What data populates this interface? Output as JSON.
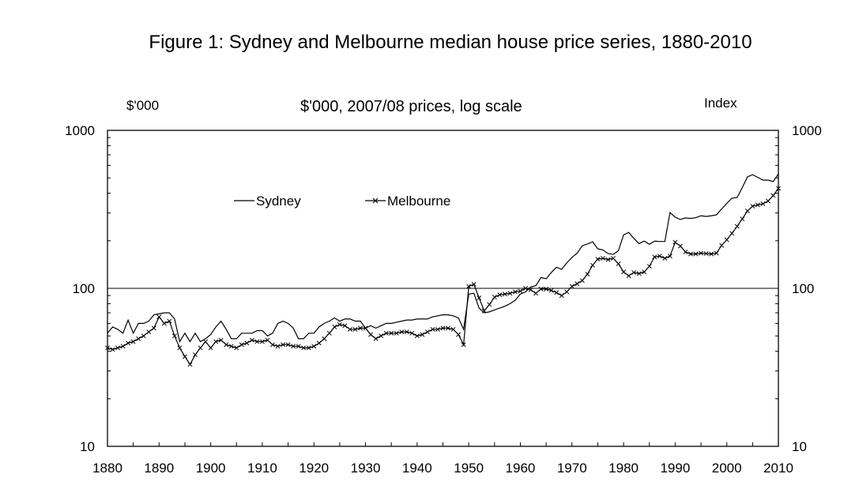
{
  "chart_data": {
    "type": "line",
    "title": "Figure 1: Sydney and Melbourne median house price series, 1880-2010",
    "subtitle": "$'000, 2007/08 prices, log scale",
    "ylabel_left": "$'000",
    "ylabel_right": "Index",
    "y_scale": "log",
    "ylim": [
      10,
      1000
    ],
    "xlim": [
      1880,
      2010
    ],
    "x_ticks": [
      1880,
      1890,
      1900,
      1910,
      1920,
      1930,
      1940,
      1950,
      1960,
      1970,
      1980,
      1990,
      2000,
      2010
    ],
    "y_ticks_left": [
      10,
      100,
      1000
    ],
    "y_ticks_right": [
      10,
      100,
      1000
    ],
    "y_tick_labels": [
      "10",
      "100",
      "1000"
    ],
    "reference_line": 100,
    "legend_placement": "top-left",
    "x": [
      1880,
      1881,
      1882,
      1883,
      1884,
      1885,
      1886,
      1887,
      1888,
      1889,
      1890,
      1891,
      1892,
      1893,
      1894,
      1895,
      1896,
      1897,
      1898,
      1899,
      1900,
      1901,
      1902,
      1903,
      1904,
      1905,
      1906,
      1907,
      1908,
      1909,
      1910,
      1911,
      1912,
      1913,
      1914,
      1915,
      1916,
      1917,
      1918,
      1919,
      1920,
      1921,
      1922,
      1923,
      1924,
      1925,
      1926,
      1927,
      1928,
      1929,
      1930,
      1931,
      1932,
      1933,
      1934,
      1935,
      1936,
      1937,
      1938,
      1939,
      1940,
      1941,
      1942,
      1943,
      1944,
      1945,
      1946,
      1947,
      1948,
      1949,
      1950,
      1951,
      1952,
      1953,
      1954,
      1955,
      1956,
      1957,
      1958,
      1959,
      1960,
      1961,
      1962,
      1963,
      1964,
      1965,
      1966,
      1967,
      1968,
      1969,
      1970,
      1971,
      1972,
      1973,
      1974,
      1975,
      1976,
      1977,
      1978,
      1979,
      1980,
      1981,
      1982,
      1983,
      1984,
      1985,
      1986,
      1987,
      1988,
      1989,
      1990,
      1991,
      1992,
      1993,
      1994,
      1995,
      1996,
      1997,
      1998,
      1999,
      2000,
      2001,
      2002,
      2003,
      2004,
      2005,
      2006,
      2007,
      2008,
      2009,
      2010
    ],
    "series": [
      {
        "name": "Sydney",
        "color": "#000000",
        "marker": "none",
        "values": [
          52,
          57,
          55,
          52,
          63,
          52,
          60,
          60,
          62,
          68,
          69,
          70,
          70,
          64,
          46,
          52,
          46,
          52,
          46,
          48,
          51,
          57,
          62,
          55,
          48,
          48,
          52,
          52,
          52,
          54,
          54,
          50,
          52,
          60,
          62,
          60,
          56,
          48,
          48,
          52,
          52,
          57,
          60,
          62,
          65,
          62,
          64,
          64,
          62,
          62,
          56,
          58,
          56,
          58,
          60,
          60,
          61,
          62,
          63,
          63,
          64,
          64,
          64,
          66,
          67,
          68,
          68,
          67,
          65,
          55,
          92,
          93,
          75,
          70,
          71,
          73,
          75,
          77,
          80,
          84,
          92,
          95,
          102,
          104,
          117,
          115,
          126,
          136,
          132,
          145,
          157,
          167,
          186,
          191,
          197,
          178,
          175,
          166,
          164,
          173,
          218,
          226,
          207,
          192,
          199,
          190,
          199,
          198,
          198,
          302,
          282,
          273,
          279,
          277,
          280,
          288,
          285,
          288,
          292,
          318,
          345,
          372,
          376,
          434,
          508,
          524,
          504,
          484,
          484,
          474,
          530
        ]
      },
      {
        "name": "Melbourne",
        "color": "#000000",
        "marker": "x",
        "values": [
          42,
          41,
          42,
          43,
          45,
          46,
          48,
          50,
          53,
          56,
          66,
          60,
          62,
          50,
          42,
          37,
          33,
          38,
          42,
          46,
          42,
          46,
          47,
          44,
          43,
          42,
          44,
          45,
          47,
          46,
          46,
          47,
          44,
          43,
          44,
          44,
          43,
          43,
          42,
          42,
          43,
          45,
          48,
          52,
          57,
          59,
          58,
          55,
          55,
          56,
          56,
          51,
          48,
          50,
          52,
          52,
          52,
          53,
          53,
          52,
          50,
          51,
          53,
          55,
          55,
          56,
          56,
          55,
          51,
          44,
          103,
          106,
          87,
          72,
          79,
          88,
          91,
          92,
          93,
          95,
          96,
          100,
          98,
          93,
          99,
          99,
          97,
          94,
          90,
          95,
          103,
          107,
          112,
          123,
          140,
          153,
          155,
          152,
          155,
          143,
          127,
          120,
          126,
          124,
          127,
          138,
          158,
          160,
          155,
          160,
          196,
          185,
          170,
          165,
          165,
          167,
          166,
          165,
          167,
          187,
          203,
          223,
          247,
          275,
          309,
          331,
          337,
          343,
          357,
          387,
          429
        ]
      }
    ]
  },
  "legend": {
    "sydney": "Sydney",
    "melbourne": "Melbourne"
  }
}
